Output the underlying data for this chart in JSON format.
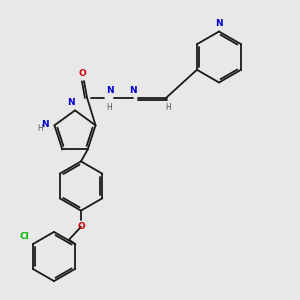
{
  "background_color": "#e8e8e8",
  "bond_color": "#1a1a1a",
  "atom_colors": {
    "N": "#0000cc",
    "O": "#cc0000",
    "Cl": "#00bb00",
    "H": "#555555"
  },
  "figsize": [
    3.0,
    3.0
  ],
  "dpi": 100
}
